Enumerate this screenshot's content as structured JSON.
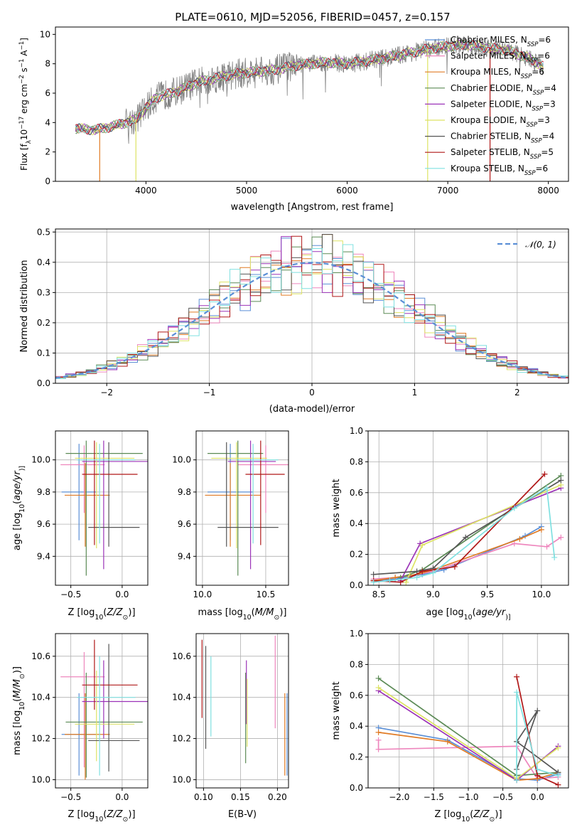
{
  "figure": {
    "title": "PLATE=0610, MJD=52056, FIBERID=0457, z=0.157"
  },
  "colors": {
    "chabrier_miles": "#5b8fd6",
    "salpeter_miles": "#ee86bd",
    "kroupa_miles": "#e07b25",
    "chabrier_elodie": "#5b8a55",
    "salpeter_elodie": "#9b33b8",
    "kroupa_elodie": "#dde364",
    "chabrier_stelib": "#555555",
    "salpeter_stelib": "#b01818",
    "kroupa_stelib": "#7fe0e0",
    "data": "#808080",
    "gauss": "#5b8fd6"
  },
  "chart_data": [
    {
      "id": "spectrum",
      "type": "line",
      "xlabel": "wavelength [Angstrom, rest frame]",
      "ylabel_parts": [
        "Flux [f",
        "λ",
        "10",
        "−17",
        " erg cm",
        "−2",
        " s",
        "−1",
        " A",
        "−1",
        "]"
      ],
      "xlim": [
        3100,
        8200
      ],
      "ylim": [
        0,
        10.5
      ],
      "xticks": [
        4000,
        5000,
        6000,
        7000,
        8000
      ],
      "yticks": [
        0,
        2,
        4,
        6,
        8,
        10
      ],
      "legend_position": "right",
      "legend": [
        {
          "key": "chabrier_miles",
          "name": "Chabrier MILES",
          "nssp": "6"
        },
        {
          "key": "salpeter_miles",
          "name": "Salpeter MILES",
          "nssp": "6"
        },
        {
          "key": "kroupa_miles",
          "name": "Kroupa MILES",
          "nssp": "6"
        },
        {
          "key": "chabrier_elodie",
          "name": "Chabrier ELODIE",
          "nssp": "4"
        },
        {
          "key": "salpeter_elodie",
          "name": "Salpeter ELODIE",
          "nssp": "3"
        },
        {
          "key": "kroupa_elodie",
          "name": "Kroupa ELODIE",
          "nssp": "3"
        },
        {
          "key": "chabrier_stelib",
          "name": "Chabrier STELIB",
          "nssp": "4"
        },
        {
          "key": "salpeter_stelib",
          "name": "Salpeter STELIB",
          "nssp": "5"
        },
        {
          "key": "kroupa_stelib",
          "name": "Kroupa STELIB",
          "nssp": "6"
        }
      ],
      "continuum": {
        "x": [
          3300,
          3500,
          3700,
          3900,
          4000,
          4100,
          4300,
          4500,
          4800,
          5000,
          5300,
          5500,
          5800,
          6000,
          6300,
          6600,
          6800,
          7000,
          7200,
          7400,
          7600,
          7800,
          7950
        ],
        "y": [
          3.6,
          3.5,
          3.8,
          4.2,
          5.0,
          5.7,
          6.1,
          6.7,
          7.2,
          7.4,
          7.6,
          7.9,
          8.1,
          8.0,
          8.3,
          8.7,
          9.0,
          9.2,
          9.3,
          9.1,
          8.9,
          8.4,
          7.8
        ]
      },
      "data_noise_amplitude": 0.8,
      "cut_models": [
        {
          "key": "kroupa_miles",
          "x": 3540
        },
        {
          "key": "kroupa_elodie",
          "x": 3900
        },
        {
          "key": "kroupa_elodie",
          "x": 6800
        },
        {
          "key": "salpeter_stelib",
          "x": 7420
        }
      ]
    },
    {
      "id": "residuals",
      "type": "step",
      "xlabel": "(data-model)/error",
      "ylabel": "Normed distribution",
      "xlim": [
        -2.5,
        2.5
      ],
      "ylim": [
        0,
        0.51
      ],
      "xticks": [
        -2,
        -1,
        0,
        1,
        2
      ],
      "yticks": [
        0.0,
        0.1,
        0.2,
        0.3,
        0.4,
        0.5
      ],
      "legend": "𝒩(0, 1)",
      "legend_position": "top-right",
      "bin_width": 0.1,
      "seeds": [
        1.3,
        2.7,
        4.1,
        5.9,
        7.3,
        8.6,
        10.2,
        11.5,
        12.8
      ]
    },
    {
      "id": "z_vs_age",
      "type": "errorbar",
      "xlabel_parts": [
        "Z [log",
        "10",
        "(",
        "Z/Z",
        "⊙",
        ")]"
      ],
      "ylabel_parts": [
        "age  [log",
        "10",
        "(",
        "age/yr",
        ")]"
      ],
      "xlim": [
        -0.65,
        0.25
      ],
      "ylim": [
        9.22,
        10.18
      ],
      "xticks": [
        -0.5,
        0.0
      ],
      "yticks": [
        9.4,
        9.6,
        9.8,
        10.0
      ],
      "points": [
        {
          "key": "chabrier_miles",
          "x": -0.42,
          "xerr": [
            0.17,
            0.17
          ],
          "y": 9.8,
          "yerr": [
            0.3,
            0.3
          ]
        },
        {
          "key": "salpeter_miles",
          "x": -0.37,
          "xerr": [
            0.23,
            0.2
          ],
          "y": 9.97,
          "yerr": [
            0.3,
            0.12
          ]
        },
        {
          "key": "kroupa_miles",
          "x": -0.36,
          "xerr": [
            0.2,
            0.24
          ],
          "y": 9.78,
          "yerr": [
            0.32,
            0.2
          ]
        },
        {
          "key": "chabrier_elodie",
          "x": -0.35,
          "xerr": [
            0.2,
            0.55
          ],
          "y": 10.04,
          "yerr": [
            0.76,
            0.08
          ]
        },
        {
          "key": "salpeter_elodie",
          "x": -0.18,
          "xerr": [
            0.21,
            0.44
          ],
          "y": 9.99,
          "yerr": [
            0.67,
            0.13
          ]
        },
        {
          "key": "kroupa_elodie",
          "x": -0.25,
          "xerr": [
            0.21,
            0.37
          ],
          "y": 10.01,
          "yerr": [
            0.56,
            0.1
          ]
        },
        {
          "key": "chabrier_stelib",
          "x": -0.13,
          "xerr": [
            0.2,
            0.3
          ],
          "y": 9.58,
          "yerr": [
            0.12,
            0.53
          ]
        },
        {
          "key": "salpeter_stelib",
          "x": -0.27,
          "xerr": [
            0.12,
            0.42
          ],
          "y": 9.91,
          "yerr": [
            0.44,
            0.21
          ]
        },
        {
          "key": "kroupa_stelib",
          "x": -0.22,
          "xerr": [
            0.22,
            0.35
          ],
          "y": 10.0,
          "yerr": [
            0.52,
            0.1
          ]
        }
      ]
    },
    {
      "id": "mass_vs_age",
      "type": "errorbar",
      "xlabel_parts": [
        "mass [log",
        "10",
        "(",
        "M/M",
        "⊙",
        ")]"
      ],
      "xlim": [
        9.95,
        10.68
      ],
      "ylim": [
        9.22,
        10.18
      ],
      "xticks": [
        10.0,
        10.5
      ],
      "yticks": [
        9.4,
        9.6,
        9.8,
        10.0
      ],
      "points": [
        {
          "key": "chabrier_miles",
          "x": 10.22,
          "xerr": [
            0.18,
            0.18
          ],
          "y": 9.8,
          "yerr": [
            0.3,
            0.3
          ]
        },
        {
          "key": "salpeter_miles",
          "x": 10.5,
          "xerr": [
            0.22,
            0.2
          ],
          "y": 9.97,
          "yerr": [
            0.3,
            0.12
          ]
        },
        {
          "key": "kroupa_miles",
          "x": 10.22,
          "xerr": [
            0.2,
            0.24
          ],
          "y": 9.78,
          "yerr": [
            0.32,
            0.2
          ]
        },
        {
          "key": "chabrier_elodie",
          "x": 10.28,
          "xerr": [
            0.24,
            0.2
          ],
          "y": 10.04,
          "yerr": [
            0.76,
            0.08
          ]
        },
        {
          "key": "salpeter_elodie",
          "x": 10.38,
          "xerr": [
            0.18,
            0.2
          ],
          "y": 9.99,
          "yerr": [
            0.67,
            0.13
          ]
        },
        {
          "key": "kroupa_elodie",
          "x": 10.27,
          "xerr": [
            0.2,
            0.24
          ],
          "y": 10.01,
          "yerr": [
            0.56,
            0.1
          ]
        },
        {
          "key": "chabrier_stelib",
          "x": 10.19,
          "xerr": [
            0.07,
            0.41
          ],
          "y": 9.58,
          "yerr": [
            0.12,
            0.53
          ]
        },
        {
          "key": "salpeter_stelib",
          "x": 10.46,
          "xerr": [
            0.12,
            0.19
          ],
          "y": 9.91,
          "yerr": [
            0.44,
            0.21
          ]
        },
        {
          "key": "kroupa_stelib",
          "x": 10.4,
          "xerr": [
            0.13,
            0.2
          ],
          "y": 10.0,
          "yerr": [
            0.52,
            0.1
          ]
        }
      ]
    },
    {
      "id": "age_weights",
      "type": "line",
      "xlabel_parts": [
        "age  [log",
        "10",
        "(",
        "age/yr",
        ")]"
      ],
      "ylabel": "mass weight",
      "xlim": [
        8.4,
        10.25
      ],
      "ylim": [
        0,
        1.0
      ],
      "xticks": [
        8.5,
        9.0,
        9.5,
        10.0
      ],
      "yticks": [
        0.0,
        0.2,
        0.4,
        0.6,
        0.8,
        1.0
      ],
      "series": [
        {
          "key": "chabrier_miles",
          "x": [
            8.45,
            8.65,
            8.9,
            9.1,
            9.85,
            10.0
          ],
          "y": [
            0.03,
            0.04,
            0.07,
            0.1,
            0.32,
            0.38
          ]
        },
        {
          "key": "salpeter_miles",
          "x": [
            8.45,
            8.65,
            8.85,
            9.0,
            9.75,
            10.05,
            10.18
          ],
          "y": [
            0.04,
            0.05,
            0.07,
            0.09,
            0.27,
            0.25,
            0.31
          ]
        },
        {
          "key": "kroupa_miles",
          "x": [
            8.45,
            8.65,
            8.85,
            9.0,
            9.8,
            10.0
          ],
          "y": [
            0.03,
            0.05,
            0.07,
            0.1,
            0.3,
            0.36
          ]
        },
        {
          "key": "chabrier_elodie",
          "x": [
            8.7,
            8.9,
            10.18
          ],
          "y": [
            0.05,
            0.1,
            0.71
          ]
        },
        {
          "key": "salpeter_elodie",
          "x": [
            8.7,
            8.88,
            10.18
          ],
          "y": [
            0.03,
            0.27,
            0.63
          ]
        },
        {
          "key": "kroupa_elodie",
          "x": [
            8.75,
            8.9,
            10.18
          ],
          "y": [
            0.02,
            0.26,
            0.65
          ]
        },
        {
          "key": "chabrier_stelib",
          "x": [
            8.45,
            8.85,
            9.0,
            9.3,
            10.18
          ],
          "y": [
            0.07,
            0.09,
            0.11,
            0.31,
            0.68
          ]
        },
        {
          "key": "salpeter_stelib",
          "x": [
            8.45,
            8.7,
            8.9,
            9.2,
            10.03
          ],
          "y": [
            0.03,
            0.02,
            0.09,
            0.12,
            0.72
          ]
        },
        {
          "key": "kroupa_stelib",
          "x": [
            8.45,
            8.6,
            8.85,
            9.0,
            9.75,
            10.05,
            10.12
          ],
          "y": [
            0.02,
            0.03,
            0.05,
            0.08,
            0.5,
            0.63,
            0.18
          ]
        }
      ]
    },
    {
      "id": "z_vs_mass",
      "type": "errorbar",
      "xlabel_parts": [
        "Z [log",
        "10",
        "(",
        "Z/Z",
        "⊙",
        ")]"
      ],
      "ylabel_parts": [
        "mass [log",
        "10",
        "(",
        "M/M",
        "⊙",
        ")]"
      ],
      "xlim": [
        -0.65,
        0.25
      ],
      "ylim": [
        9.96,
        10.71
      ],
      "xticks": [
        -0.5,
        0.0
      ],
      "yticks": [
        10.0,
        10.2,
        10.4,
        10.6
      ],
      "points": [
        {
          "key": "chabrier_miles",
          "x": -0.42,
          "xerr": [
            0.17,
            0.17
          ],
          "y": 10.22,
          "yerr": [
            0.2,
            0.2
          ]
        },
        {
          "key": "salpeter_miles",
          "x": -0.37,
          "xerr": [
            0.23,
            0.2
          ],
          "y": 10.5,
          "yerr": [
            0.44,
            0.12
          ]
        },
        {
          "key": "kroupa_miles",
          "x": -0.36,
          "xerr": [
            0.2,
            0.24
          ],
          "y": 10.22,
          "yerr": [
            0.22,
            0.2
          ]
        },
        {
          "key": "chabrier_elodie",
          "x": -0.35,
          "xerr": [
            0.2,
            0.55
          ],
          "y": 10.28,
          "yerr": [
            0.27,
            0.24
          ]
        },
        {
          "key": "salpeter_elodie",
          "x": -0.18,
          "xerr": [
            0.21,
            0.44
          ],
          "y": 10.38,
          "yerr": [
            0.18,
            0.2
          ]
        },
        {
          "key": "kroupa_elodie",
          "x": -0.25,
          "xerr": [
            0.21,
            0.37
          ],
          "y": 10.27,
          "yerr": [
            0.18,
            0.26
          ]
        },
        {
          "key": "chabrier_stelib",
          "x": -0.13,
          "xerr": [
            0.2,
            0.3
          ],
          "y": 10.19,
          "yerr": [
            0.15,
            0.47
          ]
        },
        {
          "key": "salpeter_stelib",
          "x": -0.27,
          "xerr": [
            0.12,
            0.42
          ],
          "y": 10.46,
          "yerr": [
            0.12,
            0.22
          ]
        },
        {
          "key": "kroupa_stelib",
          "x": -0.22,
          "xerr": [
            0.22,
            0.35
          ],
          "y": 10.4,
          "yerr": [
            0.38,
            0.2
          ]
        }
      ]
    },
    {
      "id": "ebv_vs_mass",
      "type": "errorbar",
      "xlabel": "E(B-V)",
      "xlim": [
        0.09,
        0.215
      ],
      "ylim": [
        9.96,
        10.71
      ],
      "xticks": [
        0.1,
        0.15,
        0.2
      ],
      "yticks": [
        10.0,
        10.2,
        10.4,
        10.6
      ],
      "points": [
        {
          "key": "chabrier_miles",
          "x": 0.213,
          "y": 10.22,
          "yerr": [
            0.2,
            0.2
          ]
        },
        {
          "key": "salpeter_miles",
          "x": 0.197,
          "y": 10.5,
          "yerr": [
            0.25,
            0.2
          ]
        },
        {
          "key": "kroupa_miles",
          "x": 0.21,
          "y": 10.22,
          "yerr": [
            0.2,
            0.2
          ]
        },
        {
          "key": "chabrier_elodie",
          "x": 0.157,
          "y": 10.28,
          "yerr": [
            0.2,
            0.24
          ]
        },
        {
          "key": "salpeter_elodie",
          "x": 0.158,
          "y": 10.52,
          "yerr": [
            0.25,
            0.06
          ]
        },
        {
          "key": "kroupa_elodie",
          "x": 0.159,
          "y": 10.34,
          "yerr": [
            0.18,
            0.15
          ]
        },
        {
          "key": "chabrier_stelib",
          "x": 0.103,
          "y": 10.4,
          "yerr": [
            0.25,
            0.25
          ]
        },
        {
          "key": "salpeter_stelib",
          "x": 0.098,
          "y": 10.46,
          "yerr": [
            0.16,
            0.22
          ]
        },
        {
          "key": "kroupa_stelib",
          "x": 0.11,
          "y": 10.4,
          "yerr": [
            0.19,
            0.2
          ]
        }
      ]
    },
    {
      "id": "z_weights",
      "type": "line",
      "xlabel_parts": [
        "Z [log",
        "10",
        "(",
        "Z/Z",
        "⊙",
        ")]"
      ],
      "ylabel": "mass weight",
      "xlim": [
        -2.45,
        0.45
      ],
      "ylim": [
        0,
        1.0
      ],
      "xticks": [
        -2.0,
        -1.5,
        -1.0,
        -0.5,
        0.0
      ],
      "yticks": [
        0.0,
        0.2,
        0.4,
        0.6,
        0.8,
        1.0
      ],
      "series": [
        {
          "key": "chabrier_miles",
          "x": [
            -2.3,
            -1.3,
            -0.3,
            0.0,
            0.3
          ],
          "y": [
            0.39,
            0.31,
            0.06,
            0.05,
            0.09
          ]
        },
        {
          "key": "salpeter_miles",
          "x": [
            -2.3,
            -2.3,
            -0.3,
            0.0,
            0.3
          ],
          "y": [
            0.31,
            0.25,
            0.27,
            0.06,
            0.07
          ]
        },
        {
          "key": "kroupa_miles",
          "x": [
            -2.3,
            -1.3,
            -0.3,
            0.0,
            0.3
          ],
          "y": [
            0.36,
            0.3,
            0.05,
            0.06,
            0.1
          ]
        },
        {
          "key": "chabrier_elodie",
          "x": [
            -2.3,
            -0.3,
            0.3
          ],
          "y": [
            0.71,
            0.08,
            0.1
          ]
        },
        {
          "key": "salpeter_elodie",
          "x": [
            -2.3,
            -0.3,
            0.3
          ],
          "y": [
            0.63,
            0.05,
            0.27
          ]
        },
        {
          "key": "kroupa_elodie",
          "x": [
            -2.3,
            -0.3,
            0.3
          ],
          "y": [
            0.65,
            0.06,
            0.26
          ]
        },
        {
          "key": "chabrier_stelib",
          "x": [
            -0.3,
            0.0,
            -0.3,
            0.3
          ],
          "y": [
            0.12,
            0.5,
            0.3,
            0.1
          ]
        },
        {
          "key": "salpeter_stelib",
          "x": [
            -0.3,
            0.0,
            0.3
          ],
          "y": [
            0.72,
            0.08,
            0.02
          ]
        },
        {
          "key": "kroupa_stelib",
          "x": [
            -0.3,
            -0.3,
            0.0,
            0.3
          ],
          "y": [
            0.05,
            0.62,
            0.12,
            0.08
          ]
        }
      ]
    }
  ]
}
